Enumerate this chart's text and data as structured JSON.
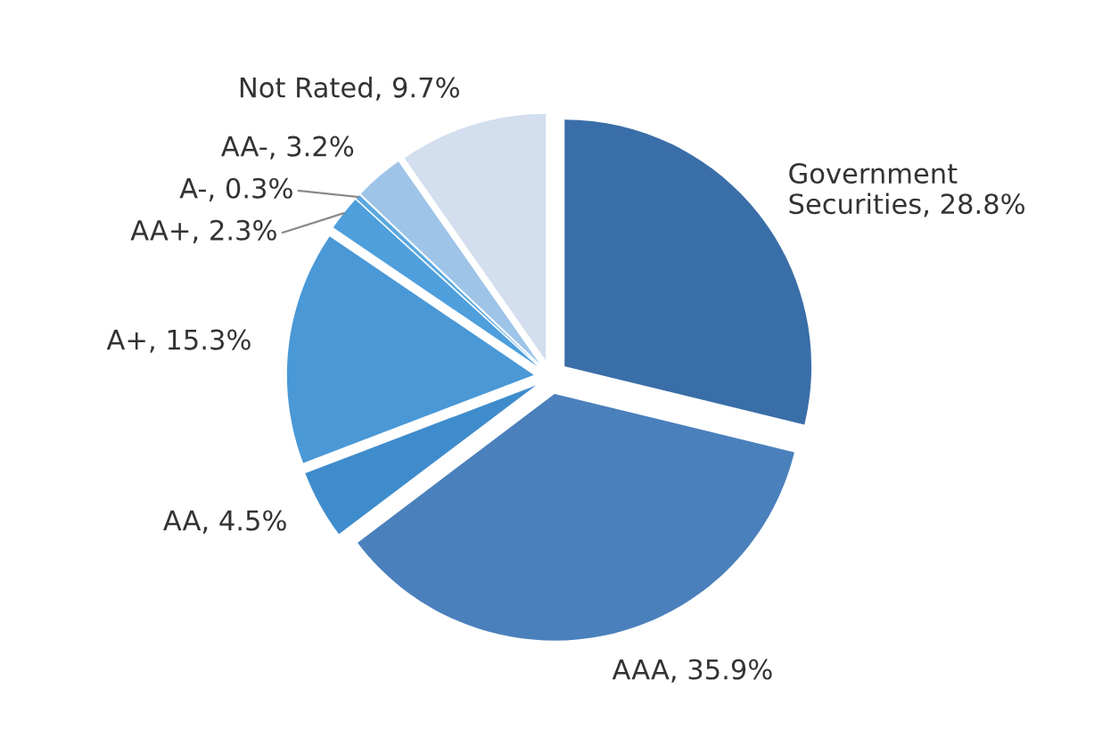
{
  "chart_data": {
    "type": "pie",
    "categories": [
      "Government Securities",
      "AAA",
      "AA",
      "A+",
      "AA+",
      "A-",
      "AA-",
      "Not Rated"
    ],
    "values": [
      28.8,
      35.9,
      4.5,
      15.3,
      2.3,
      0.3,
      3.2,
      9.7
    ],
    "value_labels": [
      "28.8%",
      "35.9%",
      "4.5%",
      "15.3%",
      "2.3%",
      "0.3%",
      "3.2%",
      "9.7%"
    ],
    "colors": [
      "#3a6ea8",
      "#4a80bc",
      "#3f8ccc",
      "#4a98d6",
      "#4e9fdc",
      "#5aa9e0",
      "#9ec4e8",
      "#d3deee"
    ],
    "legend": false
  }
}
